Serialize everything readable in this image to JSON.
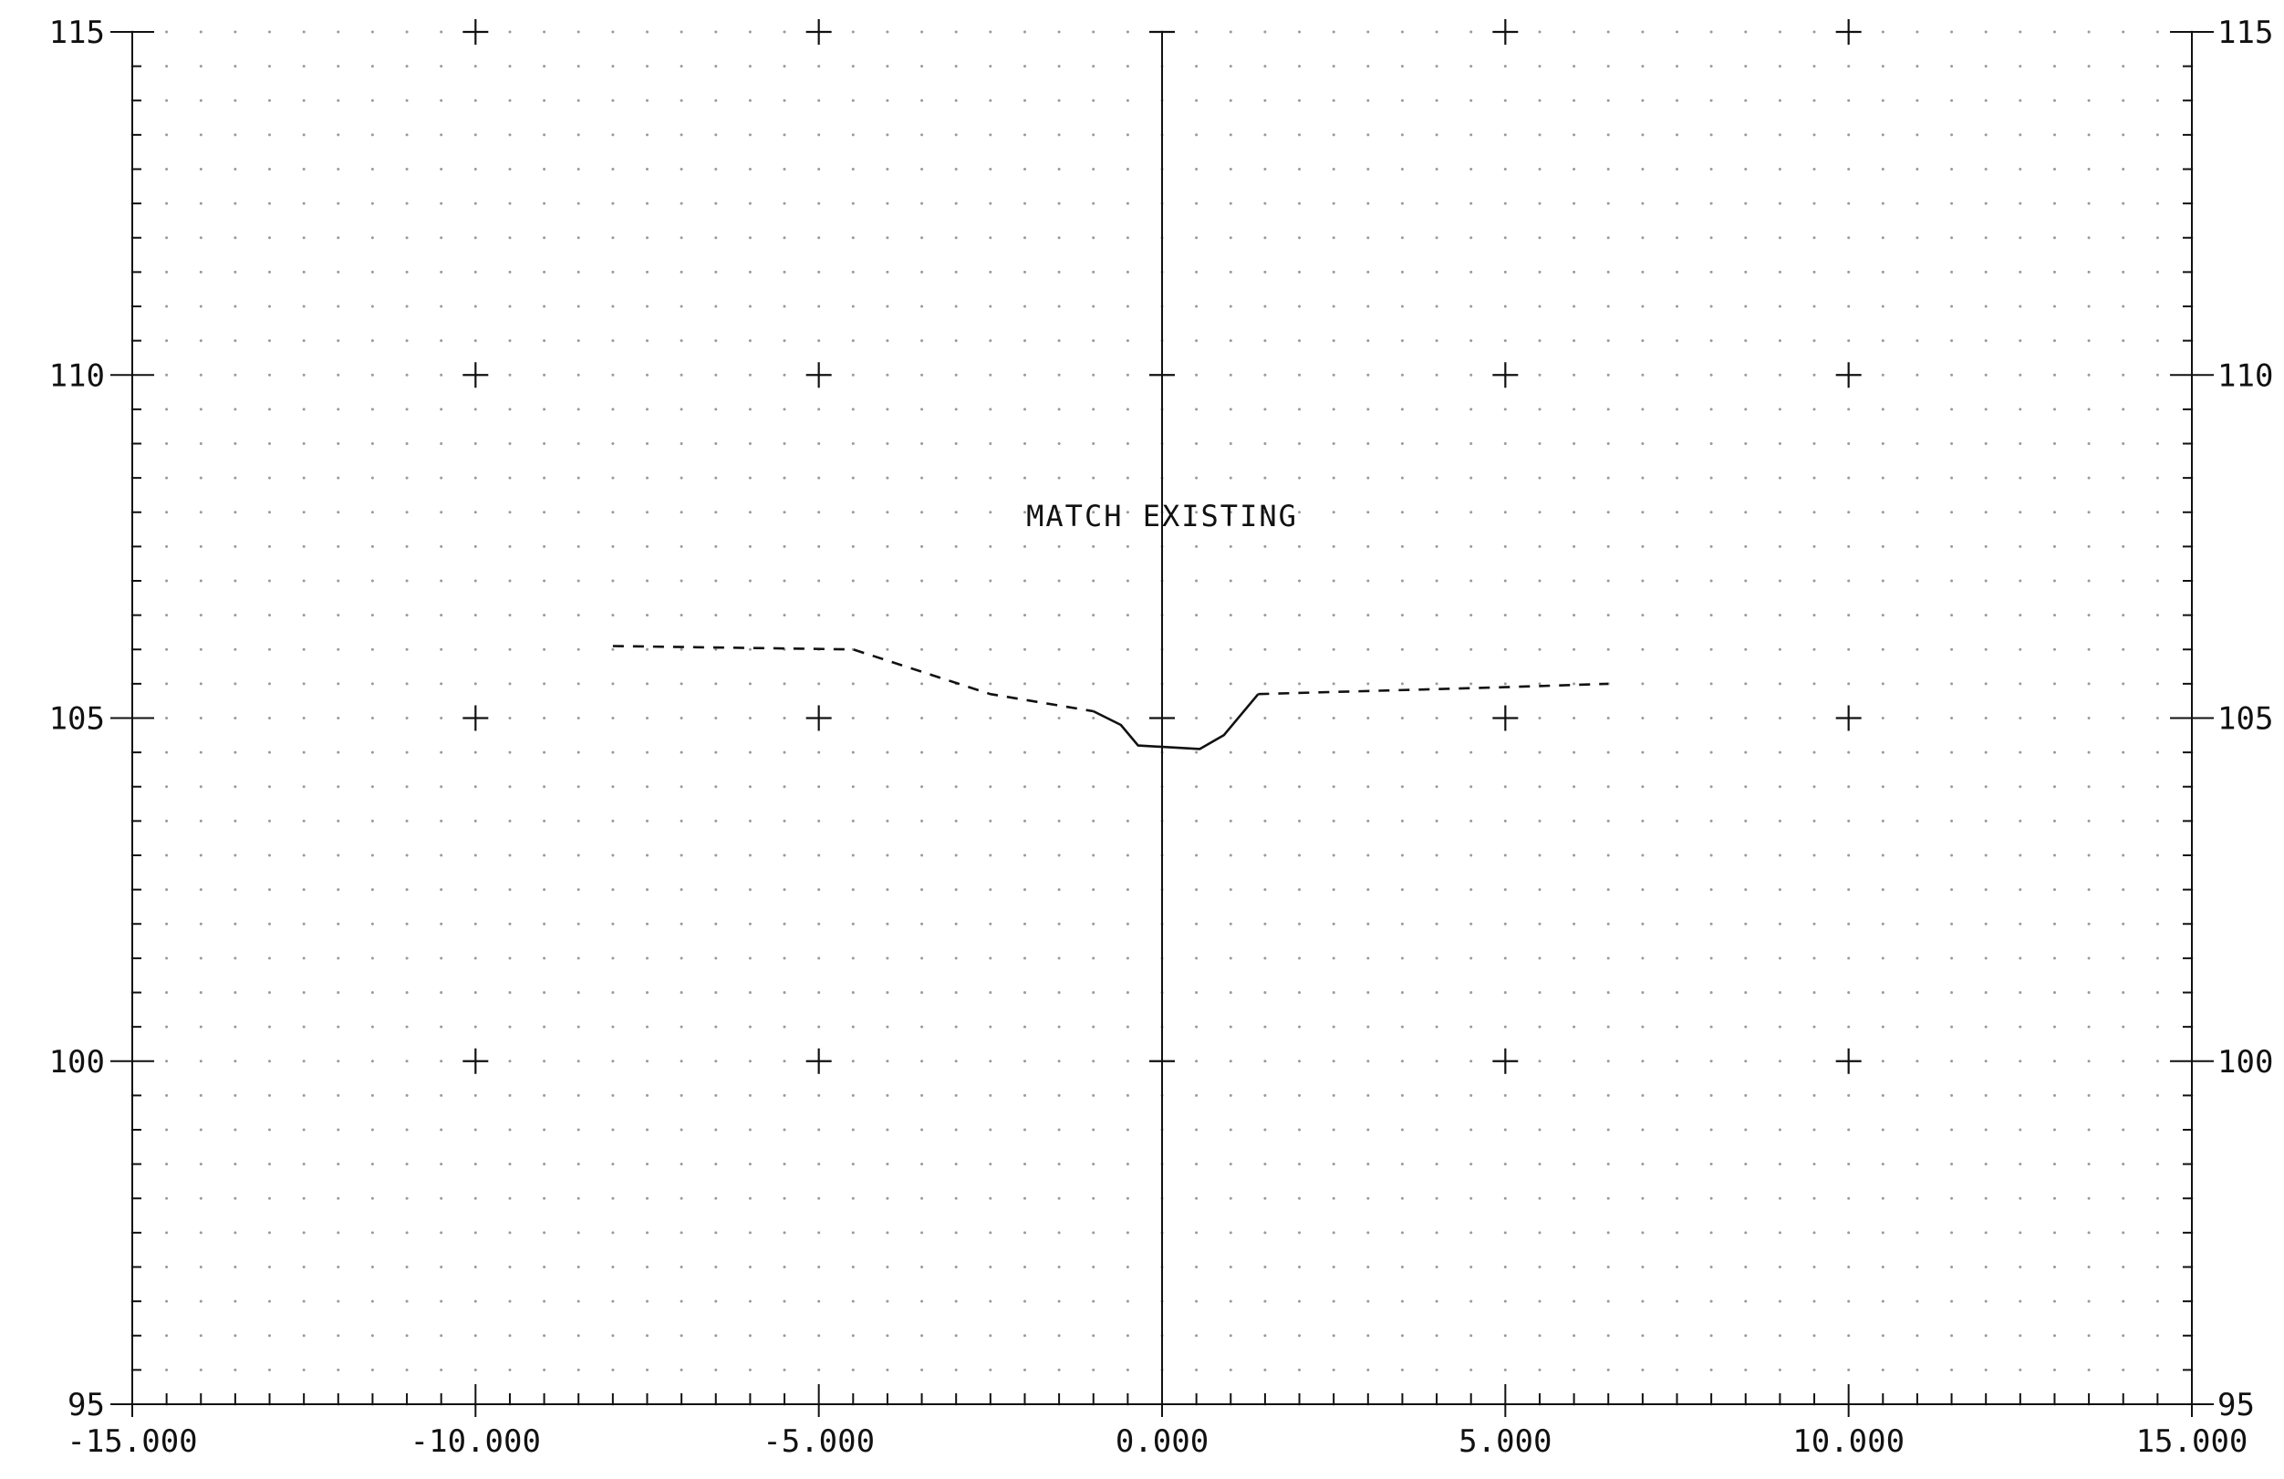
{
  "chart_data": {
    "type": "line",
    "title": "",
    "xlabel": "",
    "ylabel": "",
    "xlim": [
      -15,
      15
    ],
    "ylim": [
      95,
      115
    ],
    "grid": true,
    "x_tick_values": [
      -15,
      -10,
      -5,
      0,
      5,
      10,
      15
    ],
    "x_tick_labels": [
      "-15.000",
      "-10.000",
      "-5.000",
      "0.000",
      "5.000",
      "10.000",
      "15.000"
    ],
    "y_tick_values": [
      95,
      100,
      105,
      110,
      115
    ],
    "y_tick_labels_left": [
      "95",
      "100",
      "105",
      "110",
      "115"
    ],
    "y_tick_labels_right": [
      "95",
      "100",
      "105",
      "110",
      "115"
    ],
    "annotations": [
      {
        "text": "MATCH EXISTING",
        "x": 0,
        "y": 107.8
      }
    ],
    "series": [
      {
        "style": "dashed",
        "points": [
          [
            -8.0,
            106.05
          ],
          [
            -4.5,
            106.0
          ],
          [
            -2.5,
            105.35
          ],
          [
            -1.0,
            105.1
          ]
        ]
      },
      {
        "style": "solid",
        "points": [
          [
            -1.0,
            105.1
          ],
          [
            -0.6,
            104.9
          ],
          [
            -0.35,
            104.6
          ],
          [
            0.55,
            104.55
          ],
          [
            0.9,
            104.75
          ],
          [
            1.4,
            105.35
          ]
        ]
      },
      {
        "style": "dashed",
        "points": [
          [
            1.4,
            105.35
          ],
          [
            5.0,
            105.45
          ],
          [
            6.5,
            105.5
          ]
        ]
      }
    ]
  }
}
